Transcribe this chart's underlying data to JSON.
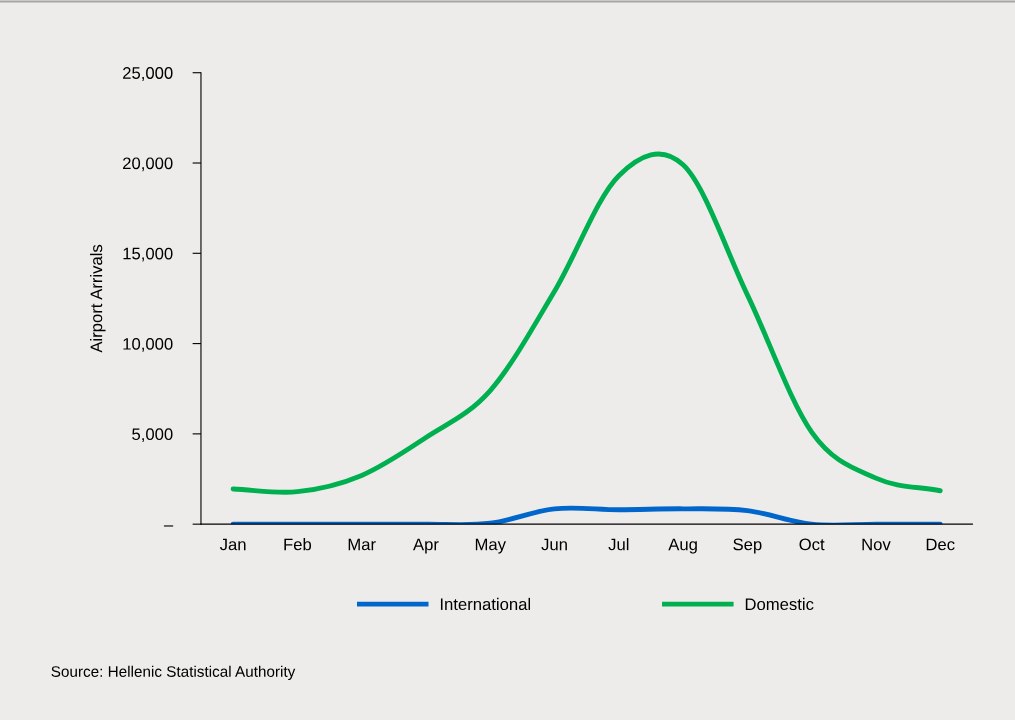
{
  "chart_data": {
    "type": "line",
    "ylabel": "Airport Arrivals",
    "categories": [
      "Jan",
      "Feb",
      "Mar",
      "Apr",
      "May",
      "Jun",
      "Jul",
      "Aug",
      "Sep",
      "Oct",
      "Nov",
      "Dec"
    ],
    "series": [
      {
        "name": "International",
        "color": "#0066cc",
        "values": [
          0,
          0,
          0,
          0,
          50,
          850,
          800,
          850,
          750,
          0,
          0,
          0
        ]
      },
      {
        "name": "Domestic",
        "color": "#00b050",
        "values": [
          1950,
          1800,
          2700,
          4800,
          7400,
          12900,
          19300,
          19900,
          12700,
          5100,
          2550,
          1850
        ]
      }
    ],
    "ylim": [
      0,
      25000
    ],
    "yticks": [
      {
        "value": 0,
        "label": "–"
      },
      {
        "value": 5000,
        "label": "5,000"
      },
      {
        "value": 10000,
        "label": "10,000"
      },
      {
        "value": 15000,
        "label": "15,000"
      },
      {
        "value": 20000,
        "label": "20,000"
      },
      {
        "value": 25000,
        "label": "25,000"
      }
    ],
    "grid": false,
    "legend": "bottom",
    "marker": "none",
    "line_style": "solid",
    "annotations": [
      "Source: Hellenic Statistical Authority"
    ]
  }
}
